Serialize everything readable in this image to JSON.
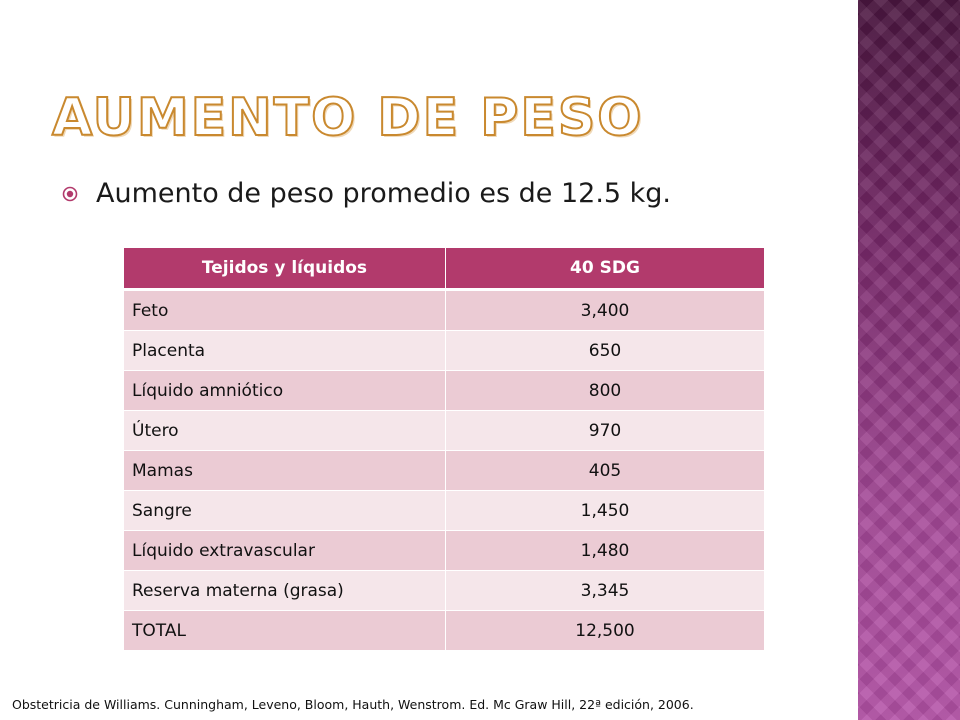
{
  "slide": {
    "title": "Aumento de peso",
    "bullet": "Aumento de peso promedio es de 12.5 kg.",
    "table": {
      "headers": [
        "Tejidos y líquidos",
        "40 SDG"
      ],
      "rows": [
        {
          "label": "Feto",
          "value": "3,400"
        },
        {
          "label": "Placenta",
          "value": "650"
        },
        {
          "label": "Líquido amniótico",
          "value": "800"
        },
        {
          "label": "Útero",
          "value": "970"
        },
        {
          "label": "Mamas",
          "value": "405"
        },
        {
          "label": "Sangre",
          "value": "1,450"
        },
        {
          "label": "Líquido extravascular",
          "value": "1,480"
        },
        {
          "label": "Reserva materna (grasa)",
          "value": "3,345"
        },
        {
          "label": "TOTAL",
          "value": "12,500"
        }
      ]
    },
    "footer": "Obstetricia de Williams. Cunningham, Leveno, Bloom, Hauth, Wenstrom. Ed. Mc Graw Hill, 22ª edición, 2006.",
    "colors": {
      "header_bg": "#b23a6c",
      "row_odd": "#ebcbd4",
      "row_even": "#f5e6ea",
      "title_outline": "#c9892f",
      "side_band": "#a44897",
      "bullet": "#b23a6c"
    },
    "icons": {
      "bullet": "circled-dot-bullet-icon"
    }
  }
}
